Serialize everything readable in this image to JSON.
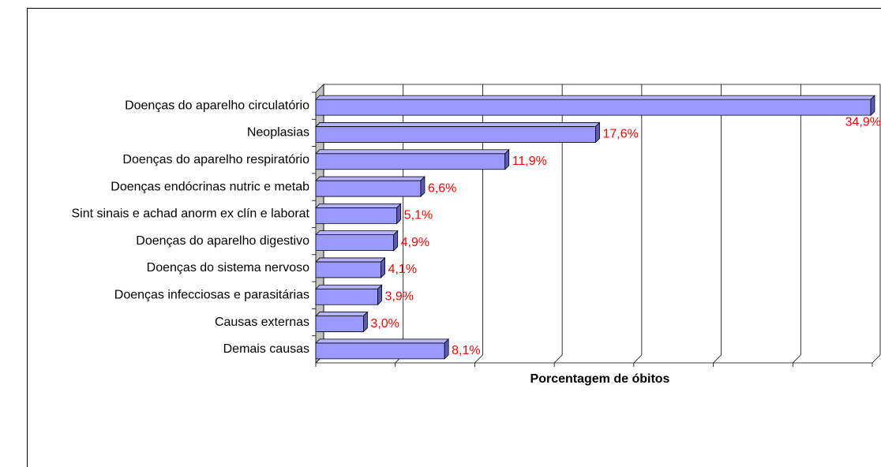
{
  "chart_data": {
    "type": "bar3d-horizontal",
    "x_label": "Porcentagem de óbitos",
    "categories": [
      "Doenças do aparelho circulatório",
      "Neoplasias",
      "Doenças do aparelho respiratório",
      "Doenças endócrinas nutric e metab",
      "Sint sinais e achad anorm ex clín e laborat",
      "Doenças do aparelho digestivo",
      "Doenças do sistema nervoso",
      "Doenças infecciosas e parasitárias",
      "Causas externas",
      "Demais causas"
    ],
    "values": [
      34.9,
      17.6,
      11.9,
      6.6,
      5.1,
      4.9,
      4.1,
      3.9,
      3.0,
      8.1
    ],
    "value_labels": [
      "34,9%",
      "17,6%",
      "11,9%",
      "6,6%",
      "5,1%",
      "4,9%",
      "4,1%",
      "3,9%",
      "3,0%",
      "8,1%"
    ],
    "color": "#9999ff",
    "label_color": "#ff0000",
    "xlim": [
      0,
      35
    ],
    "xticks": [
      0,
      5,
      10,
      15,
      20,
      25,
      30,
      35
    ],
    "grid": true
  }
}
